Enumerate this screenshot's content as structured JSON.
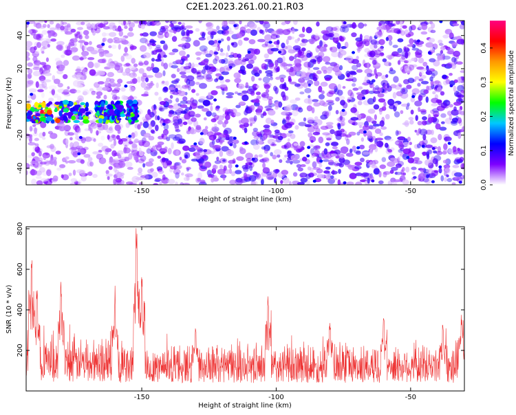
{
  "figure": {
    "title": "C2E1.2023.261.00.21.R03"
  },
  "chart_data": [
    {
      "type": "heatmap",
      "xlabel": "Height of straight line (km)",
      "ylabel": "Frequency (Hz)",
      "xlim": [
        -193,
        -30
      ],
      "ylim": [
        -50,
        49
      ],
      "x_ticks": [
        -150,
        -100,
        -50
      ],
      "y_ticks": [
        -40,
        -20,
        0,
        20,
        40
      ],
      "colorbar": {
        "label": "Normalized spectral amplitude",
        "range": [
          0.0,
          0.48
        ],
        "ticks": [
          0.0,
          0.1,
          0.2,
          0.3,
          0.4
        ],
        "colormap": [
          "#ffffff",
          "#7d00ff",
          "#0000ff",
          "#00c8ff",
          "#00ff00",
          "#ffff00",
          "#ff9900",
          "#ff0000",
          "#ff0080"
        ]
      },
      "features": {
        "background_level": 0.06,
        "signal_band_frequency_hz": -6,
        "signal_band_x_range": [
          -193,
          -152
        ],
        "signal_band_peak_level": 0.45
      }
    },
    {
      "type": "line",
      "xlabel": "Height of straight line (km)",
      "ylabel": "SNR (10 * v/v)",
      "xlim": [
        -193,
        -30
      ],
      "ylim": [
        0,
        810
      ],
      "x_ticks": [
        -150,
        -100,
        -50
      ],
      "y_ticks": [
        200,
        400,
        600,
        800
      ],
      "series": [
        {
          "color": "#ee3333",
          "baseline_range": [
            40,
            260
          ],
          "peaks": [
            {
              "x": -191,
              "y": 670
            },
            {
              "x": -189,
              "y": 520
            },
            {
              "x": -180,
              "y": 540
            },
            {
              "x": -160,
              "y": 460
            },
            {
              "x": -152,
              "y": 810
            },
            {
              "x": -150,
              "y": 600
            },
            {
              "x": -130,
              "y": 310
            },
            {
              "x": -103,
              "y": 470
            },
            {
              "x": -80,
              "y": 350
            },
            {
              "x": -60,
              "y": 360
            },
            {
              "x": -38,
              "y": 330
            },
            {
              "x": -31,
              "y": 380
            }
          ]
        }
      ]
    }
  ]
}
